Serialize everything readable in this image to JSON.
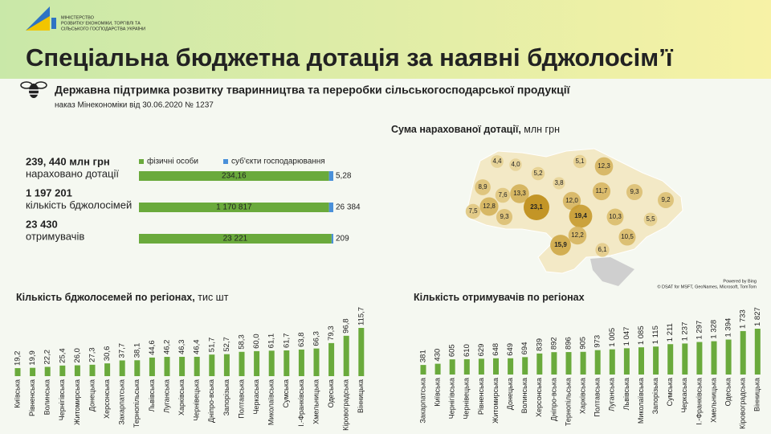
{
  "header": {
    "ministry": [
      "МІНІСТЕРСТВО",
      "РОЗВИТКУ ЕКОНОМІКИ, ТОРГІВЛІ ТА",
      "СІЛЬСЬКОГО ГОСПОДАРСТВА УКРАЇНИ"
    ],
    "title": "Спеціальна бюджетна дотація за наявні бджолосім’ї",
    "subtitle": "Державна підтримка розвитку тваринництва та переробки сільськогосподарської продукції",
    "note": "наказ Мінекономіки від 30.06.2020 № 1237"
  },
  "chart_data": [
    {
      "type": "bar",
      "orientation": "horizontal",
      "stacked": true,
      "headlines": [
        "239, 440 млн грн",
        "1 197 201",
        "23 430"
      ],
      "categories": [
        "нараховано дотації",
        "кількість бджолосімей",
        "отримувачів"
      ],
      "series": [
        {
          "name": "фізичні особи",
          "color": "#6aaa3c",
          "values": [
            234.16,
            1170817,
            23221
          ],
          "value_labels": [
            "234,16",
            "1 170 817",
            "23 221"
          ]
        },
        {
          "name": "суб'єкти господарювання",
          "color": "#4a90d9",
          "values": [
            5.28,
            26384,
            209
          ],
          "value_labels": [
            "5,28",
            "26 384",
            "209"
          ]
        }
      ]
    },
    {
      "type": "map",
      "title": "Сума нарахованої дотації,",
      "unit": "млн грн",
      "values": [
        4.4,
        4.0,
        5.2,
        5.1,
        12.3,
        3.8,
        8.9,
        13.3,
        7.6,
        12.0,
        11.7,
        9.3,
        9.2,
        12.8,
        7.5,
        9.3,
        23.1,
        19.4,
        10.3,
        5.5,
        12.2,
        15.9,
        10.5,
        6.1
      ],
      "value_labels": [
        "4,4",
        "4,0",
        "5,2",
        "5,1",
        "12,3",
        "3,8",
        "8,9",
        "13,3",
        "7,6",
        "12,0",
        "11,7",
        "9,3",
        "9,2",
        "12,8",
        "7,5",
        "9,3",
        "23,1",
        "19,4",
        "10,3",
        "5,5",
        "12,2",
        "15,9",
        "10,5",
        "6,1"
      ],
      "credits": [
        "Powered by Bing",
        "© DSAT for MSFT, GeoNames, Microsoft, TomTom"
      ]
    },
    {
      "type": "bar",
      "title": "Кількість бджолосемей по регіонах,",
      "unit": "тис шт",
      "color": "#6aaa3c",
      "categories": [
        "Київська",
        "Рівненська",
        "Волинська",
        "Чернігівська",
        "Житомирська",
        "Донецька",
        "Херсонська",
        "Закарпатська",
        "Тернопільська",
        "Львівська",
        "Луганська",
        "Харківська",
        "Чернівецька",
        "Дніпро-вська",
        "Запорізька",
        "Полтавська",
        "Черкаська",
        "Миколаївська",
        "Сумська",
        "І.-Франківська",
        "Хмельницька",
        "Одеська",
        "Кіровоградська",
        "Вінницька"
      ],
      "values": [
        19.2,
        19.9,
        22.2,
        25.4,
        26.0,
        27.3,
        30.6,
        37.7,
        38.1,
        44.6,
        46.2,
        46.3,
        46.4,
        51.7,
        52.7,
        58.3,
        60.0,
        61.1,
        61.7,
        63.8,
        66.3,
        79.3,
        96.8,
        115.7
      ],
      "value_labels": [
        "19,2",
        "19,9",
        "22,2",
        "25,4",
        "26,0",
        "27,3",
        "30,6",
        "37,7",
        "38,1",
        "44,6",
        "46,2",
        "46,3",
        "46,4",
        "51,7",
        "52,7",
        "58,3",
        "60,0",
        "61,1",
        "61,7",
        "63,8",
        "66,3",
        "79,3",
        "96,8",
        "115,7"
      ]
    },
    {
      "type": "bar",
      "title": "Кількість отримувачів по регіонах",
      "color": "#6aaa3c",
      "categories": [
        "Закарпатська",
        "Київська",
        "Чернігівська",
        "Чернівецька",
        "Рівненська",
        "Житомирська",
        "Донецька",
        "Волинська",
        "Херсонська",
        "Дніпро-вська",
        "Тернопільська",
        "Харківська",
        "Полтавська",
        "Луганська",
        "Львівська",
        "Миколаївська",
        "Запорізька",
        "Сумська",
        "Черкаська",
        "І.-Франківська",
        "Хмельницька",
        "Одеська",
        "Кіровоградська",
        "Вінницька"
      ],
      "values": [
        381,
        430,
        605,
        610,
        629,
        648,
        649,
        694,
        839,
        892,
        896,
        905,
        973,
        1005,
        1047,
        1085,
        1115,
        1211,
        1237,
        1297,
        1328,
        1394,
        1733,
        1827
      ],
      "value_labels": [
        "381",
        "430",
        "605",
        "610",
        "629",
        "648",
        "649",
        "694",
        "839",
        "892",
        "896",
        "905",
        "973",
        "1 005",
        "1 047",
        "1 085",
        "1 115",
        "1 211",
        "1 237",
        "1 297",
        "1 328",
        "1 394",
        "1 733",
        "1 827"
      ]
    }
  ]
}
